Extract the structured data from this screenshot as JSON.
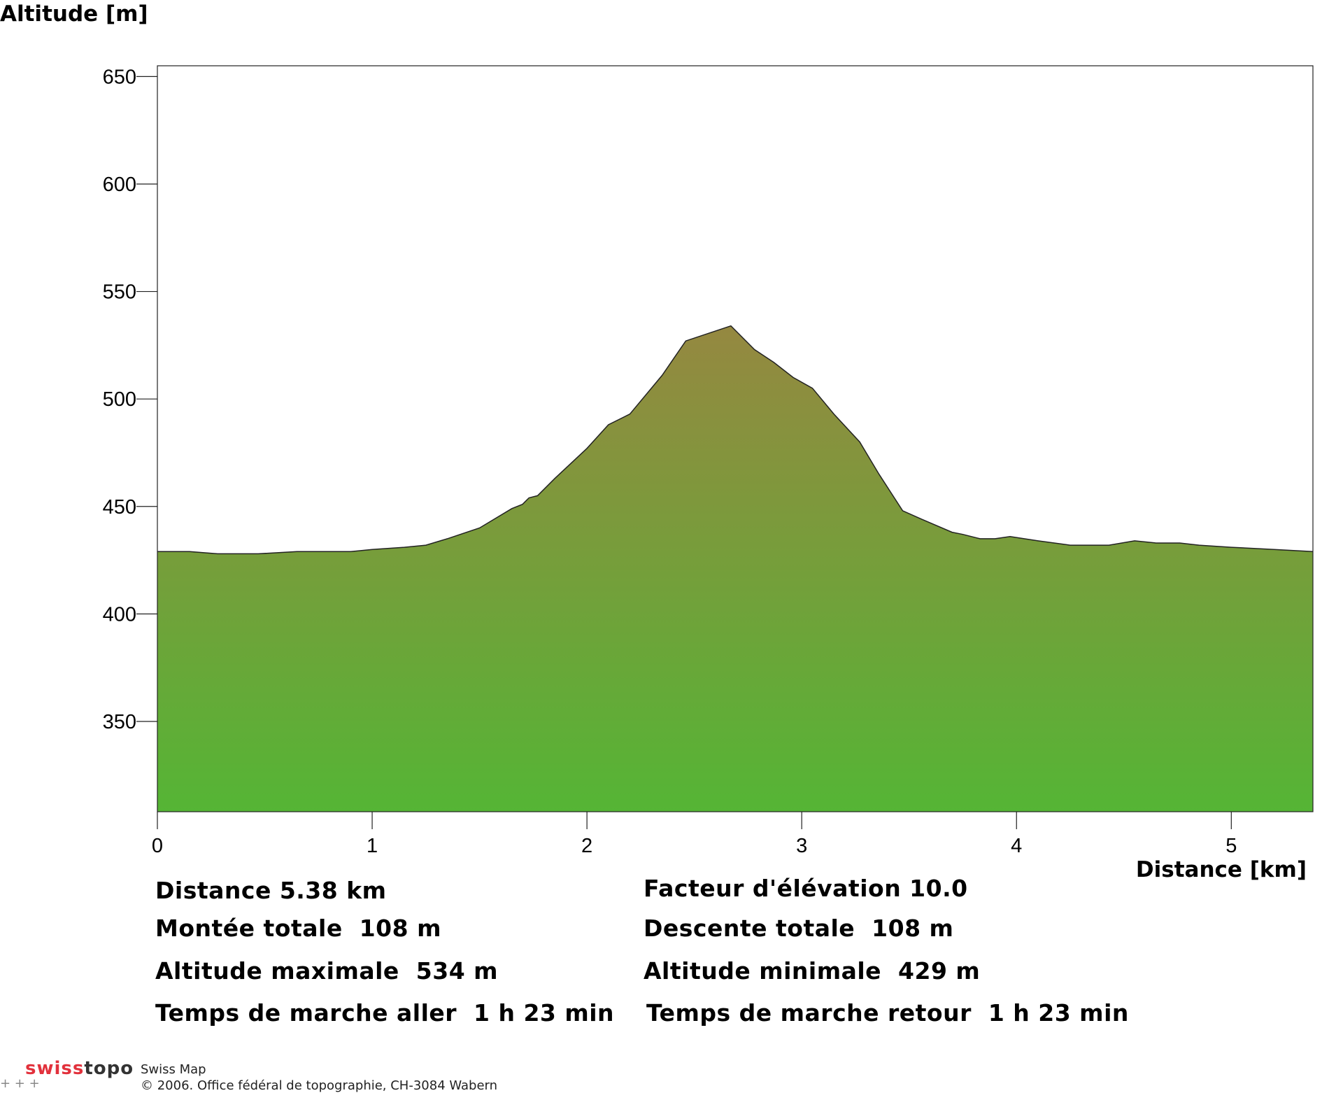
{
  "chart_data": {
    "type": "area",
    "title": "",
    "ylabel": "Altitude [m]",
    "xlabel": "Distance [km]",
    "xlim": [
      0,
      5.38
    ],
    "ylim": [
      308,
      655
    ],
    "xticks": [
      0,
      1,
      2,
      3,
      4,
      5
    ],
    "yticks": [
      350,
      400,
      450,
      500,
      550,
      600,
      650
    ],
    "grid": false,
    "series": [
      {
        "x": [
          0,
          0.15,
          0.28,
          0.47,
          0.65,
          0.9,
          1.0,
          1.15,
          1.25,
          1.35,
          1.5,
          1.65,
          1.7,
          1.73,
          1.77,
          1.85,
          2.0,
          2.1,
          2.2,
          2.35,
          2.46,
          2.58,
          2.67,
          2.78,
          2.87,
          2.96,
          3.05,
          3.15,
          3.27,
          3.36,
          3.47,
          3.56,
          3.7,
          3.75,
          3.83,
          3.9,
          3.97,
          4.1,
          4.25,
          4.43,
          4.55,
          4.65,
          4.76,
          4.85,
          5.0,
          5.2,
          5.38
        ],
        "y": [
          429,
          429,
          428,
          428,
          429,
          429,
          430,
          431,
          432,
          435,
          440,
          449,
          451,
          454,
          455,
          463,
          477,
          488,
          493,
          511,
          527,
          531,
          534,
          523,
          517,
          510,
          505,
          493,
          480,
          465,
          448,
          444,
          438,
          437,
          435,
          435,
          436,
          434,
          432,
          432,
          434,
          433,
          433,
          432,
          431,
          430,
          429
        ]
      }
    ],
    "colors": {
      "fill_top": "#958840",
      "fill_bottom": "#55b535",
      "outline": "#222222"
    }
  },
  "stats": {
    "distance": "Distance 5.38 km",
    "elevation_factor": "Facteur d'élévation 10.0",
    "ascent": "Montée totale  108 m",
    "descent": "Descente totale  108 m",
    "max_altitude": "Altitude maximale  534 m",
    "min_altitude": "Altitude minimale  429 m",
    "time_outbound": "Temps de marche aller  1 h 23 min",
    "time_return": "Temps de marche retour  1 h 23 min"
  },
  "footer": {
    "brand_swiss": "swiss",
    "brand_topo": "topo",
    "product": "Swiss Map",
    "copyright": "© 2006. Office fédéral de topographie, CH-3084 Wabern",
    "crosses": "+   +   +"
  }
}
